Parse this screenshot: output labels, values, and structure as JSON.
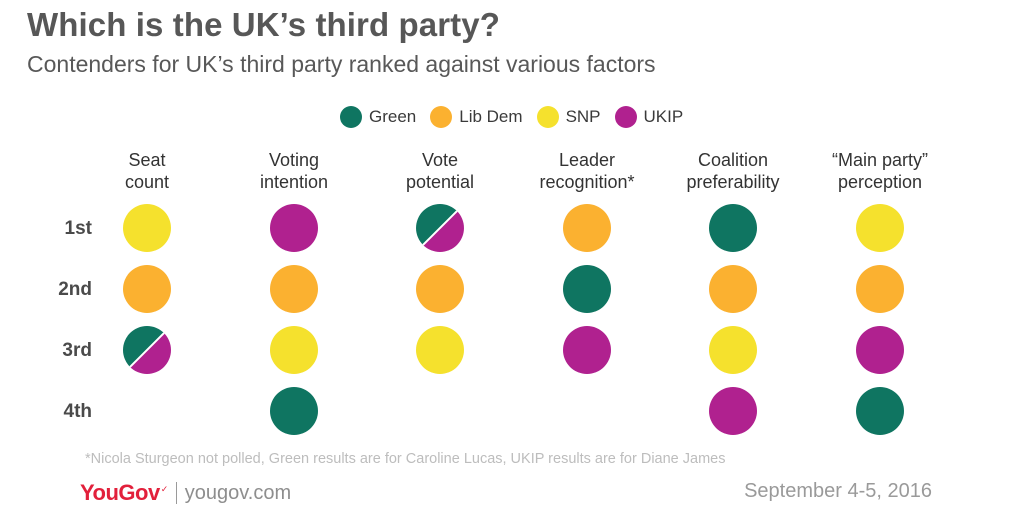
{
  "title": "Which is the UK’s third party?",
  "subtitle": "Contenders for UK’s third party ranked against various factors",
  "legend": [
    {
      "name": "Green",
      "color": "#0f7561"
    },
    {
      "name": "Lib Dem",
      "color": "#fbb130"
    },
    {
      "name": "SNP",
      "color": "#f5e12d"
    },
    {
      "name": "UKIP",
      "color": "#b0218f"
    }
  ],
  "chart_data": {
    "type": "table",
    "columns": [
      [
        "Seat",
        "count"
      ],
      [
        "Voting",
        "intention"
      ],
      [
        "Vote",
        "potential"
      ],
      [
        "Leader",
        "recognition*"
      ],
      [
        "Coalition",
        "preferability"
      ],
      [
        "“Main party”",
        "perception"
      ]
    ],
    "rows": [
      "1st",
      "2nd",
      "3rd",
      "4th"
    ],
    "rankings": [
      [
        [
          "SNP"
        ],
        [
          "Lib Dem"
        ],
        [
          "Green",
          "UKIP"
        ],
        []
      ],
      [
        [
          "UKIP"
        ],
        [
          "Lib Dem"
        ],
        [
          "SNP"
        ],
        [
          "Green"
        ]
      ],
      [
        [
          "Green",
          "UKIP"
        ],
        [
          "Lib Dem"
        ],
        [
          "SNP"
        ],
        []
      ],
      [
        [
          "Lib Dem"
        ],
        [
          "Green"
        ],
        [
          "UKIP"
        ],
        []
      ],
      [
        [
          "Green"
        ],
        [
          "Lib Dem"
        ],
        [
          "SNP"
        ],
        [
          "UKIP"
        ]
      ],
      [
        [
          "SNP"
        ],
        [
          "Lib Dem"
        ],
        [
          "UKIP"
        ],
        [
          "Green"
        ]
      ]
    ]
  },
  "footnote": "*Nicola Sturgeon not polled, Green results are for Caroline Lucas, UKIP results are for Diane James",
  "brand": {
    "logo": "YouGov",
    "site": "yougov.com"
  },
  "date": "September 4-5, 2016"
}
